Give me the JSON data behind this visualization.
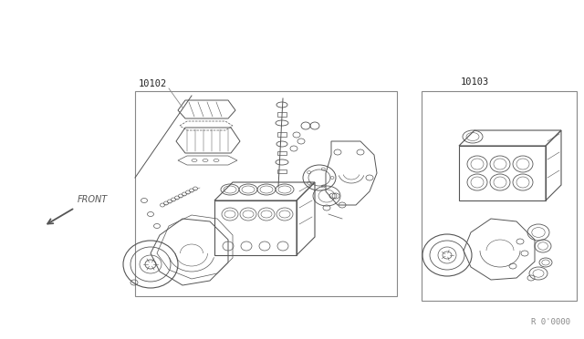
{
  "background_color": "#ffffff",
  "part1_label": "10102",
  "part2_label": "10103",
  "ref_code": "R 0'0000",
  "front_label": "FRONT",
  "fig_width": 6.4,
  "fig_height": 3.72,
  "dpi": 100,
  "line_color": "#888888",
  "draw_color": "#555555",
  "text_color": "#333333",
  "label_color": "#222222"
}
